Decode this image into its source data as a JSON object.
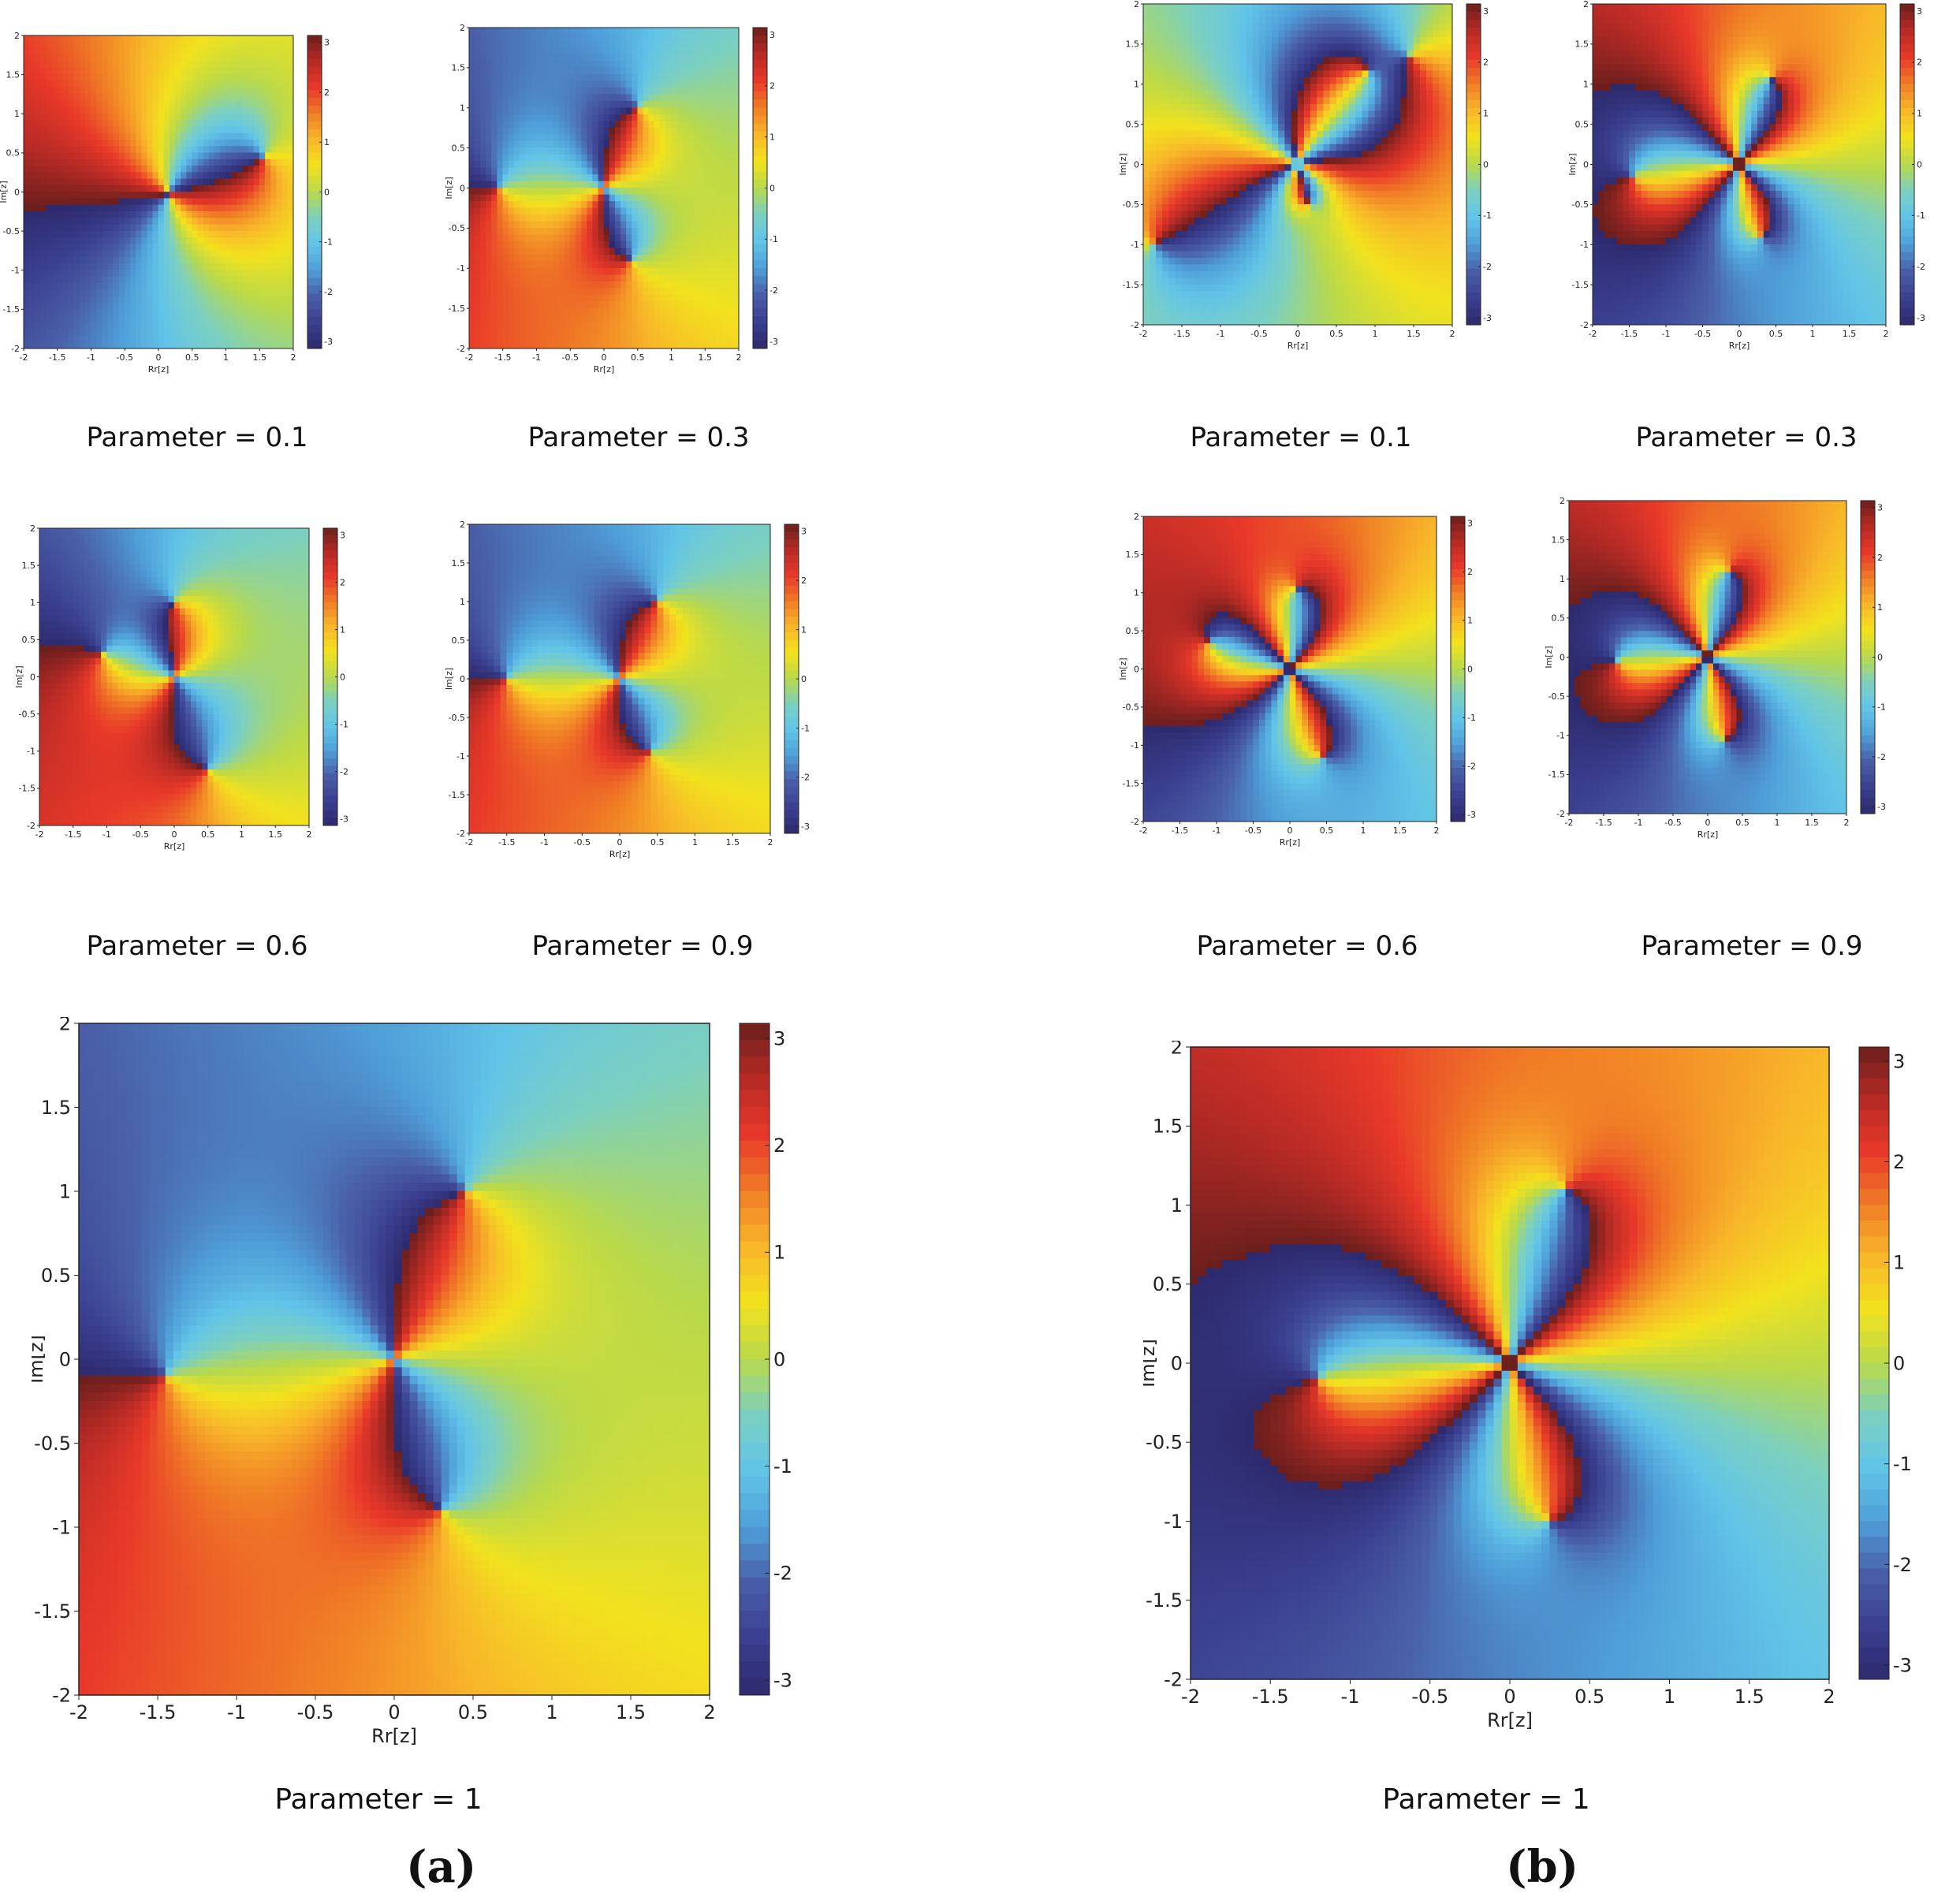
{
  "figure": {
    "subfigure_a": "(a)",
    "subfigure_b": "(b)"
  },
  "colorbar": {
    "palette": [
      "#2e2a6e",
      "#3a3f8f",
      "#4a5fa8",
      "#4f9fd8",
      "#62c4e8",
      "#7cd0c0",
      "#b9d94a",
      "#f2e21e",
      "#f8b62a",
      "#f07d26",
      "#e8392a",
      "#b52a25",
      "#6b1f1d"
    ],
    "range": [
      -3.14,
      3.14
    ],
    "ticks": [
      "-3",
      "-2",
      "-1",
      "0",
      "1",
      "2",
      "3"
    ]
  },
  "axes": {
    "xlabel": "Rr[z]",
    "ylabel": "Im[z]",
    "xticks": [
      "-2",
      "-1.5",
      "-1",
      "-0.5",
      "0",
      "0.5",
      "1",
      "1.5",
      "2"
    ],
    "yticks": [
      "2",
      "1.5",
      "1",
      "0.5",
      "0",
      "-0.5",
      "-1",
      "-1.5",
      "-2"
    ],
    "xlim": [
      -2,
      2
    ],
    "ylim": [
      -2,
      2
    ]
  },
  "chart_data": [
    {
      "type": "heatmap",
      "group": "(a)",
      "caption": "Parameter = 0.1",
      "xlabel": "Rr[z]",
      "ylabel": "Im[z]",
      "xlim": [
        -2,
        2
      ],
      "ylim": [
        -2,
        2
      ],
      "zlim": [
        -3,
        3
      ],
      "zeros": [
        [
          0.15,
          0.0
        ],
        [
          0.15,
          -0.05
        ]
      ],
      "poles": [
        [
          1.55,
          0.45
        ]
      ]
    },
    {
      "type": "heatmap",
      "group": "(a)",
      "caption": "Parameter = 0.3",
      "xlabel": "Rr[z]",
      "ylabel": "Im[z]",
      "xlim": [
        -2,
        2
      ],
      "ylim": [
        -2,
        2
      ],
      "zlim": [
        -3,
        3
      ],
      "zeros": [
        [
          0.0,
          0.0
        ],
        [
          0.0,
          0.0
        ]
      ],
      "poles": [
        [
          -1.55,
          0.0
        ],
        [
          0.5,
          1.0
        ],
        [
          0.4,
          -0.9
        ]
      ]
    },
    {
      "type": "heatmap",
      "group": "(a)",
      "caption": "Parameter = 0.6",
      "xlabel": "Rr[z]",
      "ylabel": "Im[z]",
      "xlim": [
        -2,
        2
      ],
      "ylim": [
        -2,
        2
      ],
      "zlim": [
        -3,
        3
      ],
      "zeros": [
        [
          0.0,
          0.0
        ],
        [
          0.0,
          0.0
        ]
      ],
      "poles": [
        [
          -1.05,
          0.3
        ],
        [
          0.0,
          1.0
        ],
        [
          0.5,
          -1.25
        ]
      ]
    },
    {
      "type": "heatmap",
      "group": "(a)",
      "caption": "Parameter = 0.9",
      "xlabel": "Rr[z]",
      "ylabel": "Im[z]",
      "xlim": [
        -2,
        2
      ],
      "ylim": [
        -2,
        2
      ],
      "zlim": [
        -3,
        3
      ],
      "zeros": [
        [
          0.0,
          0.0
        ],
        [
          0.0,
          0.0
        ]
      ],
      "poles": [
        [
          -1.5,
          0.0
        ],
        [
          0.5,
          1.0
        ],
        [
          0.4,
          -0.95
        ]
      ]
    },
    {
      "type": "heatmap",
      "group": "(a)",
      "caption": "Parameter = 1",
      "xlabel": "Rr[z]",
      "ylabel": "Im[z]",
      "xlim": [
        -2,
        2
      ],
      "ylim": [
        -2,
        2
      ],
      "zlim": [
        -3,
        3
      ],
      "zeros": [
        [
          0.0,
          0.0
        ],
        [
          0.0,
          0.0
        ]
      ],
      "poles": [
        [
          -1.45,
          -0.1
        ],
        [
          0.45,
          1.0
        ],
        [
          0.3,
          -0.9
        ]
      ]
    },
    {
      "type": "heatmap",
      "group": "(b)",
      "caption": "Parameter = 0.1",
      "xlabel": "Rr[z]",
      "ylabel": "Im[z]",
      "xlim": [
        -2,
        2
      ],
      "ylim": [
        -2,
        2
      ],
      "zlim": [
        -3,
        3
      ],
      "zeros": [
        [
          0.0,
          0.0
        ],
        [
          0.0,
          0.0
        ],
        [
          0.0,
          0.0
        ],
        [
          0.0,
          0.0
        ]
      ],
      "poles": [
        [
          -1.85,
          -1.0
        ],
        [
          0.9,
          1.15
        ],
        [
          0.15,
          -0.5
        ],
        [
          1.45,
          1.35
        ]
      ]
    },
    {
      "type": "heatmap",
      "group": "(b)",
      "caption": "Parameter = 0.3",
      "xlabel": "Rr[z]",
      "ylabel": "Im[z]",
      "xlim": [
        -2,
        2
      ],
      "ylim": [
        -2,
        2
      ],
      "zlim": [
        -3,
        3
      ],
      "zeros": [
        [
          0.0,
          0.0
        ],
        [
          0.0,
          0.0
        ],
        [
          0.0,
          0.0
        ],
        [
          0.0,
          0.0
        ]
      ],
      "poles": [
        [
          -1.45,
          -0.15
        ],
        [
          0.45,
          1.05
        ],
        [
          0.3,
          -0.9
        ]
      ]
    },
    {
      "type": "heatmap",
      "group": "(b)",
      "caption": "Parameter = 0.6",
      "xlabel": "Rr[z]",
      "ylabel": "Im[z]",
      "xlim": [
        -2,
        2
      ],
      "ylim": [
        -2,
        2
      ],
      "zlim": [
        -3,
        3
      ],
      "zeros": [
        [
          0.0,
          0.0
        ],
        [
          0.0,
          0.0
        ],
        [
          0.0,
          0.0
        ],
        [
          0.0,
          0.0
        ]
      ],
      "poles": [
        [
          -1.1,
          0.35
        ],
        [
          0.1,
          1.05
        ],
        [
          0.45,
          -1.15
        ]
      ]
    },
    {
      "type": "heatmap",
      "group": "(b)",
      "caption": "Parameter = 0.9",
      "xlabel": "Rr[z]",
      "ylabel": "Im[z]",
      "xlim": [
        -2,
        2
      ],
      "ylim": [
        -2,
        2
      ],
      "zlim": [
        -3,
        3
      ],
      "zeros": [
        [
          0.0,
          0.0
        ],
        [
          0.0,
          0.0
        ],
        [
          0.0,
          0.0
        ],
        [
          0.0,
          0.0
        ]
      ],
      "poles": [
        [
          -1.3,
          -0.05
        ],
        [
          0.3,
          1.1
        ],
        [
          0.25,
          -1.05
        ]
      ]
    },
    {
      "type": "heatmap",
      "group": "(b)",
      "caption": "Parameter = 1",
      "xlabel": "Rr[z]",
      "ylabel": "Im[z]",
      "xlim": [
        -2,
        2
      ],
      "ylim": [
        -2,
        2
      ],
      "zlim": [
        -3,
        3
      ],
      "zeros": [
        [
          0.0,
          0.0
        ],
        [
          0.0,
          0.0
        ],
        [
          0.0,
          0.0
        ],
        [
          0.0,
          0.0
        ]
      ],
      "poles": [
        [
          -1.2,
          -0.1
        ],
        [
          0.35,
          1.1
        ],
        [
          0.25,
          -1.0
        ]
      ]
    }
  ]
}
